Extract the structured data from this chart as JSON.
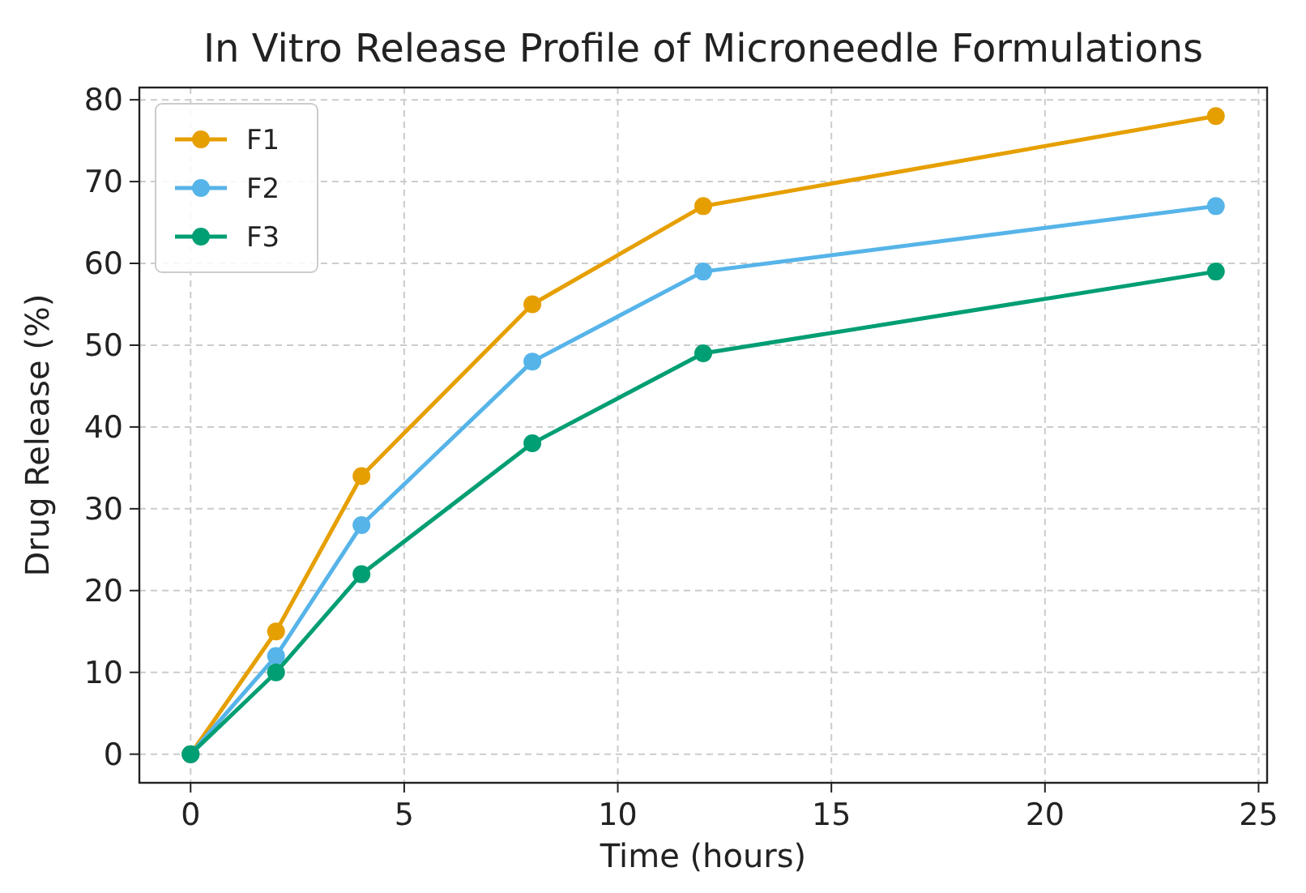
{
  "chart_data": {
    "type": "line",
    "title": "In Vitro Release Profile of Microneedle Formulations",
    "xlabel": "Time (hours)",
    "ylabel": "Drug Release (%)",
    "x": [
      0,
      2,
      4,
      8,
      12,
      24
    ],
    "series": [
      {
        "name": "F1",
        "color": "#e69f00",
        "values": [
          0,
          15,
          34,
          55,
          67,
          78
        ]
      },
      {
        "name": "F2",
        "color": "#56b4e9",
        "values": [
          0,
          12,
          28,
          48,
          59,
          67
        ]
      },
      {
        "name": "F3",
        "color": "#009e73",
        "values": [
          0,
          10,
          22,
          38,
          49,
          59
        ]
      }
    ],
    "xlim": [
      -1.2,
      25.2
    ],
    "ylim": [
      -3.5,
      81.5
    ],
    "xticks": [
      0,
      5,
      10,
      15,
      20,
      25
    ],
    "yticks": [
      0,
      10,
      20,
      30,
      40,
      50,
      60,
      70,
      80
    ],
    "grid": true,
    "legend": "top left",
    "marker": "circle",
    "line_style": "solid"
  }
}
